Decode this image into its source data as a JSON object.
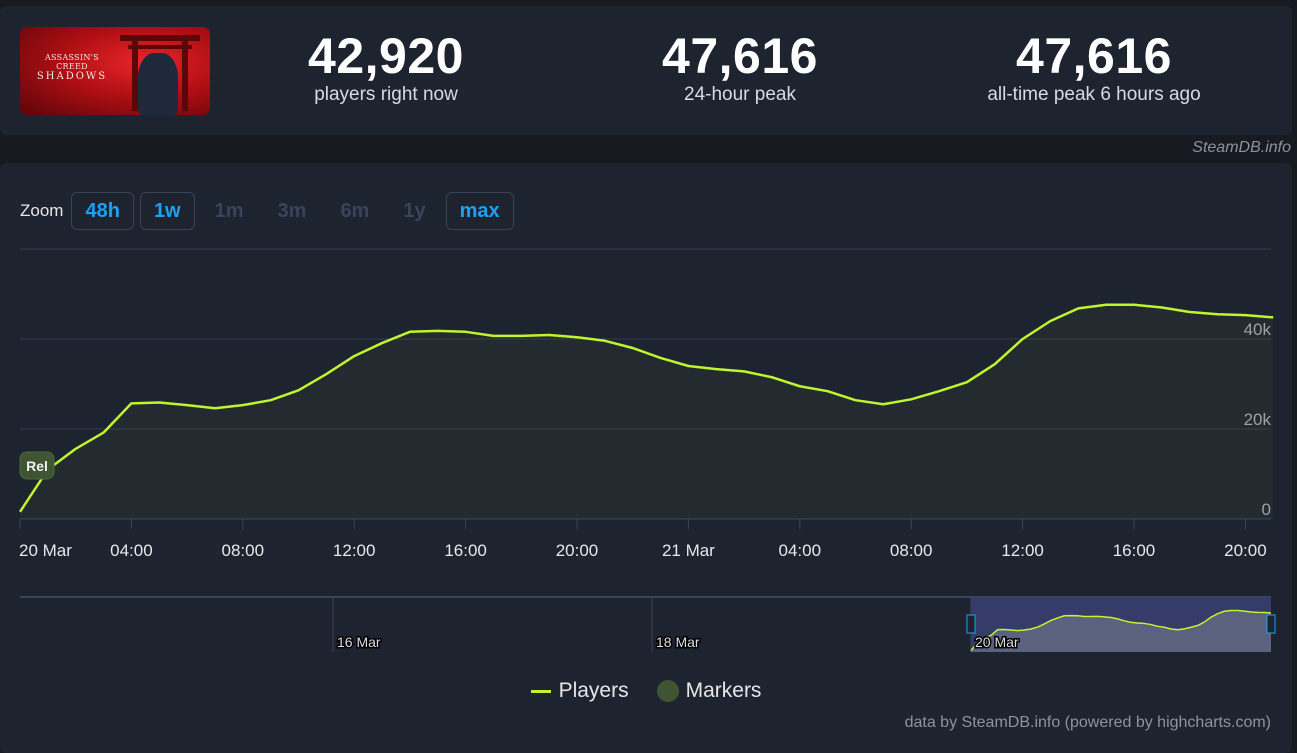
{
  "header": {
    "game_logo_lines": [
      "ASSASSIN'S CREED",
      "SHADOWS"
    ],
    "stats": [
      {
        "value": "42,920",
        "label": "players right now"
      },
      {
        "value": "47,616",
        "label": "24-hour peak"
      },
      {
        "value": "47,616",
        "label": "all-time peak 6 hours ago"
      }
    ]
  },
  "credit_top": "SteamDB.info",
  "zoom": {
    "label": "Zoom",
    "buttons": [
      {
        "label": "48h",
        "active": true
      },
      {
        "label": "1w",
        "active": true
      },
      {
        "label": "1m",
        "active": false
      },
      {
        "label": "3m",
        "active": false
      },
      {
        "label": "6m",
        "active": false
      },
      {
        "label": "1y",
        "active": false
      },
      {
        "label": "max",
        "active": true
      }
    ]
  },
  "chart_data": {
    "type": "area",
    "series": [
      {
        "name": "Players",
        "color": "#bef52e"
      }
    ],
    "x": [
      "20 Mar 00:00",
      "20 Mar 01:00",
      "20 Mar 02:00",
      "20 Mar 03:00",
      "20 Mar 04:00",
      "20 Mar 05:00",
      "20 Mar 06:00",
      "20 Mar 07:00",
      "20 Mar 08:00",
      "20 Mar 09:00",
      "20 Mar 10:00",
      "20 Mar 11:00",
      "20 Mar 12:00",
      "20 Mar 13:00",
      "20 Mar 14:00",
      "20 Mar 15:00",
      "20 Mar 16:00",
      "20 Mar 17:00",
      "20 Mar 18:00",
      "20 Mar 19:00",
      "20 Mar 20:00",
      "20 Mar 21:00",
      "20 Mar 22:00",
      "20 Mar 23:00",
      "21 Mar 00:00",
      "21 Mar 01:00",
      "21 Mar 02:00",
      "21 Mar 03:00",
      "21 Mar 04:00",
      "21 Mar 05:00",
      "21 Mar 06:00",
      "21 Mar 07:00",
      "21 Mar 08:00",
      "21 Mar 09:00",
      "21 Mar 10:00",
      "21 Mar 11:00",
      "21 Mar 12:00",
      "21 Mar 13:00",
      "21 Mar 14:00",
      "21 Mar 15:00",
      "21 Mar 16:00",
      "21 Mar 17:00",
      "21 Mar 18:00",
      "21 Mar 19:00",
      "21 Mar 20:00",
      "21 Mar 21:00"
    ],
    "values": [
      1600,
      11000,
      15600,
      19200,
      25700,
      25900,
      25300,
      24600,
      25300,
      26400,
      28600,
      32200,
      36200,
      39100,
      41600,
      41800,
      41600,
      40700,
      40700,
      40900,
      40400,
      39600,
      38000,
      35800,
      34000,
      33300,
      32800,
      31500,
      29500,
      28400,
      26400,
      25500,
      26600,
      28400,
      30400,
      34400,
      40000,
      44000,
      46800,
      47616,
      47600,
      47000,
      46000,
      45500,
      45300,
      44800
    ],
    "ylim": [
      0,
      60000
    ],
    "y_ticks": [
      {
        "value": 0,
        "label": "0"
      },
      {
        "value": 20000,
        "label": "20k"
      },
      {
        "value": 40000,
        "label": "40k"
      }
    ],
    "x_ticks": [
      "20 Mar",
      "04:00",
      "08:00",
      "12:00",
      "16:00",
      "20:00",
      "21 Mar",
      "04:00",
      "08:00",
      "12:00",
      "16:00",
      "20:00"
    ],
    "grid": true,
    "markers": [
      {
        "label": "Rel",
        "x": "20 Mar 01:00",
        "color": "#3f5433"
      }
    ],
    "navigator": {
      "x_ticks": [
        "16 Mar",
        "18 Mar",
        "20 Mar"
      ],
      "selected": [
        "20 Mar",
        "21 Mar 21:00"
      ]
    }
  },
  "legend": [
    {
      "label": "Players",
      "color": "#bef52e",
      "symbol": "line"
    },
    {
      "label": "Markers",
      "color": "#3f5433",
      "symbol": "circle"
    }
  ],
  "credit_bottom": "data by SteamDB.info (powered by highcharts.com)"
}
